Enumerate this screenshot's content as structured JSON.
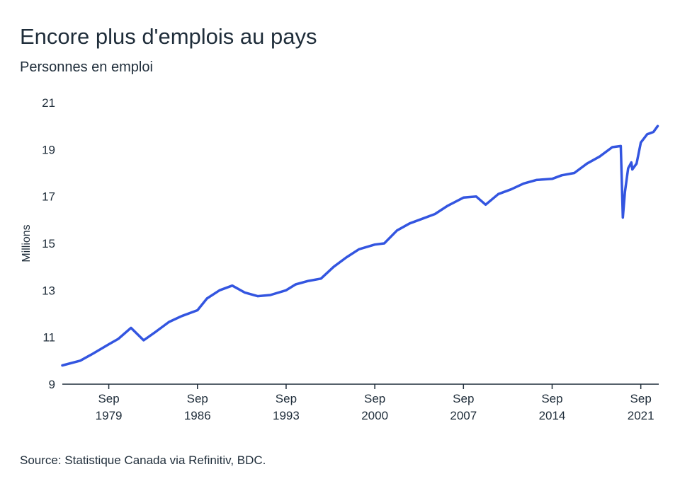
{
  "chart_data": {
    "type": "line",
    "title": "Encore plus d'emplois au pays",
    "subtitle": "Personnes en emploi",
    "y_label": "Millions",
    "source": "Source: Statistique Canada via Refinitiv, BDC.",
    "x": [
      "1976-01",
      "1977-06",
      "1978-06",
      "1979-09",
      "1980-06",
      "1981-06",
      "1982-06",
      "1983-06",
      "1984-06",
      "1985-06",
      "1986-09",
      "1987-06",
      "1988-06",
      "1989-06",
      "1990-06",
      "1991-06",
      "1992-06",
      "1993-09",
      "1994-06",
      "1995-06",
      "1996-06",
      "1997-06",
      "1998-06",
      "1999-06",
      "2000-09",
      "2001-06",
      "2002-06",
      "2003-06",
      "2004-06",
      "2005-06",
      "2006-06",
      "2007-09",
      "2008-09",
      "2009-06",
      "2010-06",
      "2011-06",
      "2012-06",
      "2013-06",
      "2014-09",
      "2015-06",
      "2016-06",
      "2017-06",
      "2018-06",
      "2019-06",
      "2020-02",
      "2020-04",
      "2020-06",
      "2020-09",
      "2020-12",
      "2021-01",
      "2021-05",
      "2021-09",
      "2022-03",
      "2022-09",
      "2023-01"
    ],
    "series": [
      {
        "name": "Personnes en emploi",
        "color": "#3355e0",
        "values": [
          9.8,
          10.0,
          10.3,
          10.7,
          10.93,
          11.4,
          10.87,
          11.25,
          11.65,
          11.9,
          12.15,
          12.65,
          13.0,
          13.2,
          12.9,
          12.75,
          12.8,
          13.0,
          13.25,
          13.4,
          13.5,
          14.0,
          14.4,
          14.75,
          14.95,
          15.0,
          15.55,
          15.85,
          16.05,
          16.25,
          16.6,
          16.95,
          17.0,
          16.65,
          17.1,
          17.3,
          17.55,
          17.7,
          17.75,
          17.9,
          18.0,
          18.4,
          18.7,
          19.1,
          19.15,
          16.1,
          17.2,
          18.2,
          18.45,
          18.15,
          18.4,
          19.3,
          19.65,
          19.75,
          20.0
        ]
      }
    ],
    "xlim": [
      "1976-01",
      "2023-02"
    ],
    "xticks": [
      {
        "value": "1979-09",
        "label": "Sep 1979"
      },
      {
        "value": "1986-09",
        "label": "Sep 1986"
      },
      {
        "value": "1993-09",
        "label": "Sep 1993"
      },
      {
        "value": "2000-09",
        "label": "Sep 2000"
      },
      {
        "value": "2007-09",
        "label": "Sep 2007"
      },
      {
        "value": "2014-09",
        "label": "Sep 2014"
      },
      {
        "value": "2021-09",
        "label": "Sep 2021"
      }
    ],
    "ylim": [
      9,
      21
    ],
    "yticks": [
      9,
      11,
      13,
      15,
      17,
      19,
      21
    ],
    "grid": false
  }
}
